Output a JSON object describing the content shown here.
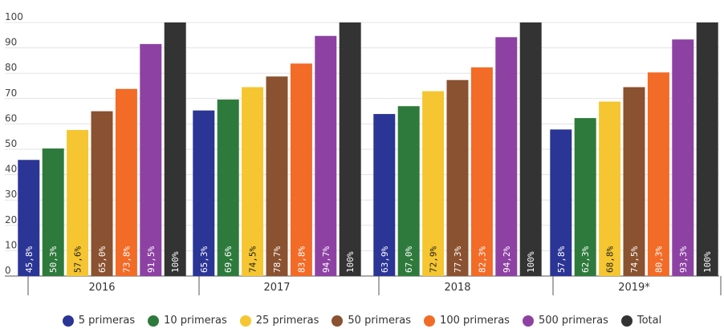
{
  "chart_data": {
    "type": "bar",
    "categories": [
      "2016",
      "2017",
      "2018",
      "2019*"
    ],
    "ylim": [
      0,
      100
    ],
    "yticks": [
      0,
      10,
      20,
      30,
      40,
      50,
      60,
      70,
      80,
      90,
      100
    ],
    "grid": true,
    "legend_position": "bottom",
    "series": [
      {
        "name": "5 primeras",
        "color": "#2b3595",
        "values": [
          45.8,
          65.3,
          63.9,
          57.8
        ],
        "labels": [
          "45,8%",
          "65,3%",
          "63,9%",
          "57,8%"
        ]
      },
      {
        "name": "10 primeras",
        "color": "#2e7a3c",
        "values": [
          50.3,
          69.6,
          67.0,
          62.3
        ],
        "labels": [
          "50,3%",
          "69,6%",
          "67,0%",
          "62,3%"
        ]
      },
      {
        "name": "25 primeras",
        "color": "#f5c631",
        "values": [
          57.6,
          74.5,
          72.9,
          68.8
        ],
        "labels": [
          "57,6%",
          "74,5%",
          "72,9%",
          "68,8%"
        ]
      },
      {
        "name": "50 primeras",
        "color": "#8a5230",
        "values": [
          65.0,
          78.7,
          77.3,
          74.5
        ],
        "labels": [
          "65,0%",
          "78,7%",
          "77,3%",
          "74,5%"
        ]
      },
      {
        "name": "100 primeras",
        "color": "#f26b27",
        "values": [
          73.8,
          83.8,
          82.3,
          80.3
        ],
        "labels": [
          "73,8%",
          "83,8%",
          "82,3%",
          "80,3%"
        ]
      },
      {
        "name": "500 primeras",
        "color": "#8d42a3",
        "values": [
          91.5,
          94.7,
          94.2,
          93.3
        ],
        "labels": [
          "91,5%",
          "94,7%",
          "94,2%",
          "93,3%"
        ]
      },
      {
        "name": "Total",
        "color": "#333333",
        "values": [
          100,
          100,
          100,
          100
        ],
        "labels": [
          "100%",
          "100%",
          "100%",
          "100%"
        ]
      }
    ]
  }
}
